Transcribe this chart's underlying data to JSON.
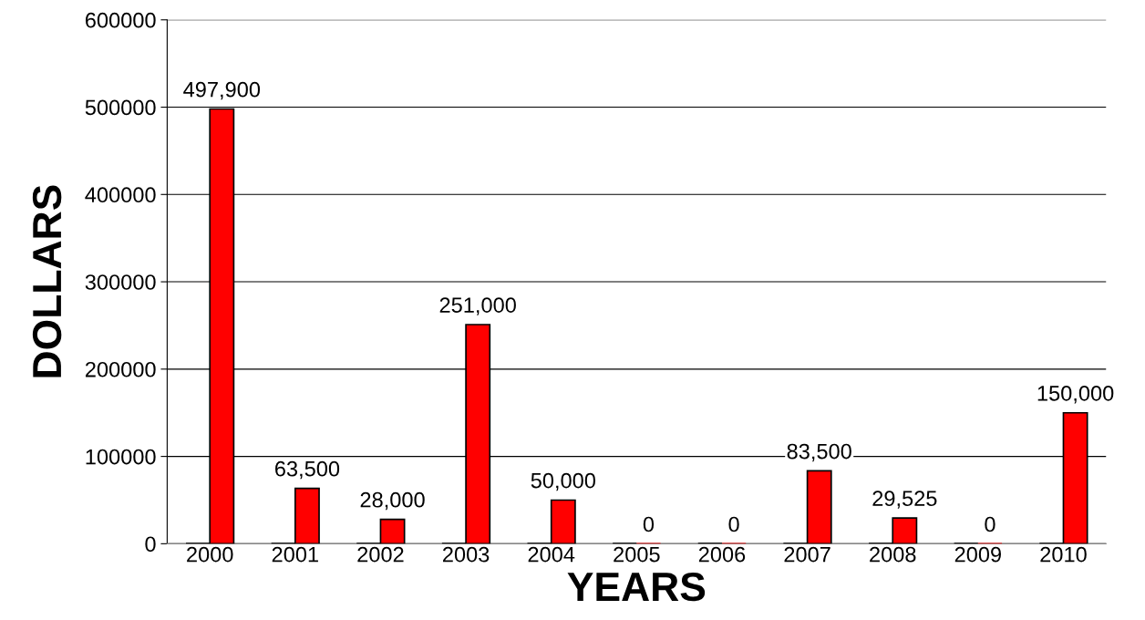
{
  "chart_data": {
    "type": "bar",
    "xlabel": "YEARS",
    "ylabel": "DOLLARS",
    "categories": [
      "2000",
      "2001",
      "2002",
      "2003",
      "2004",
      "2005",
      "2006",
      "2007",
      "2008",
      "2009",
      "2010"
    ],
    "series": [
      {
        "color": "#000000",
        "values": [
          0,
          0,
          0,
          0,
          0,
          0,
          0,
          0,
          0,
          0,
          0
        ]
      },
      {
        "color": "#ff0000",
        "values": [
          497900,
          63500,
          28000,
          251000,
          50000,
          0,
          0,
          83500,
          29525,
          0,
          150000
        ],
        "value_labels": [
          "497,900",
          "63,500",
          "28,000",
          "251,000",
          "50,000",
          "0",
          "0",
          "83,500",
          "29,525",
          "0",
          "150,000"
        ]
      }
    ],
    "ylim": [
      0,
      600000
    ],
    "yticks": [
      0,
      100000,
      200000,
      300000,
      400000,
      500000,
      600000
    ],
    "grid": "y"
  }
}
